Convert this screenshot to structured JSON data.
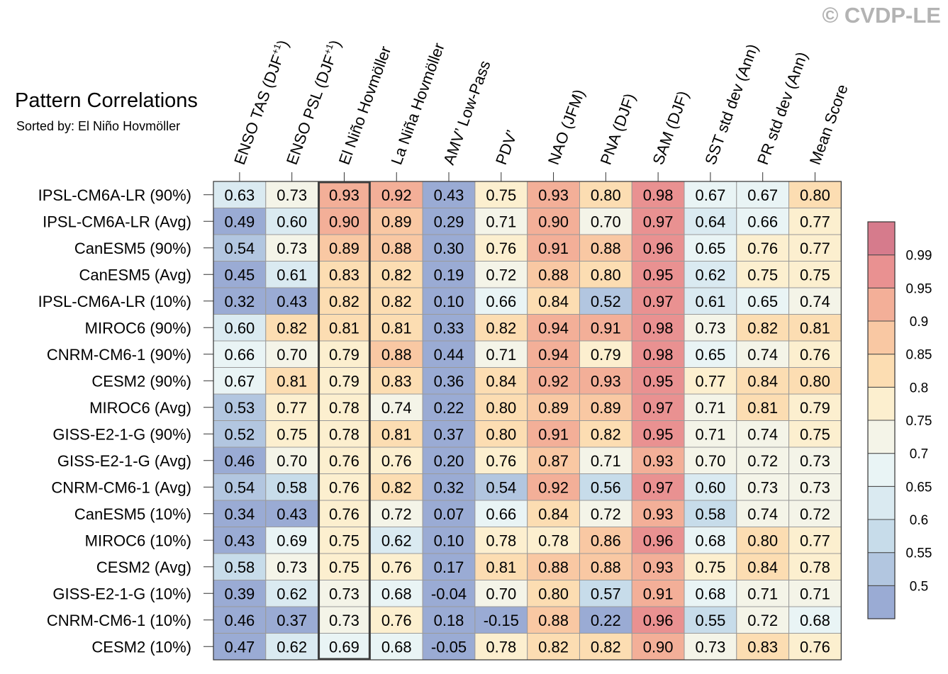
{
  "header": {
    "title": "Pattern Correlations",
    "subtitle": "Sorted by: El Niño Hovmöller",
    "copyright": "© CVDP-LE"
  },
  "chart_data": {
    "type": "heatmap",
    "columns": [
      "ENSO TAS (DJF+1)",
      "ENSO PSL (DJF+1)",
      "El Niño Hovmöller",
      "La Niña Hovmöller",
      "AMV’ Low-Pass",
      "PDV’",
      "NAO (JFM)",
      "PNA (DJF)",
      "SAM (DJF)",
      "SST std dev (Ann)",
      "PR std dev (Ann)",
      "Mean Score"
    ],
    "column_superscripts": [
      "+1",
      "+1",
      "",
      "",
      "",
      "",
      "",
      "",
      "",
      "",
      "",
      ""
    ],
    "column_bases": [
      "ENSO TAS (DJF",
      "ENSO PSL (DJF",
      "El Niño Hovmöller",
      "La Niña Hovmöller",
      "AMV’ Low-Pass",
      "PDV’",
      "NAO (JFM)",
      "PNA (DJF)",
      "SAM (DJF)",
      "SST std dev (Ann)",
      "PR std dev (Ann)",
      "Mean Score"
    ],
    "column_suffixes": [
      ")",
      ")",
      "",
      "",
      "",
      "",
      "",
      "",
      "",
      "",
      "",
      ""
    ],
    "rows": [
      "IPSL-CM6A-LR (90%)",
      "IPSL-CM6A-LR (Avg)",
      "CanESM5 (90%)",
      "CanESM5 (Avg)",
      "IPSL-CM6A-LR (10%)",
      "MIROC6 (90%)",
      "CNRM-CM6-1 (90%)",
      "CESM2 (90%)",
      "MIROC6 (Avg)",
      "GISS-E2-1-G (90%)",
      "GISS-E2-1-G (Avg)",
      "CNRM-CM6-1 (Avg)",
      "CanESM5 (10%)",
      "MIROC6 (10%)",
      "CESM2 (Avg)",
      "GISS-E2-1-G (10%)",
      "CNRM-CM6-1 (10%)",
      "CESM2 (10%)"
    ],
    "values": [
      [
        "0.63",
        "0.73",
        "0.93",
        "0.92",
        "0.43",
        "0.75",
        "0.93",
        "0.80",
        "0.98",
        "0.67",
        "0.67",
        "0.80"
      ],
      [
        "0.49",
        "0.60",
        "0.90",
        "0.89",
        "0.29",
        "0.71",
        "0.90",
        "0.70",
        "0.97",
        "0.64",
        "0.66",
        "0.77"
      ],
      [
        "0.54",
        "0.73",
        "0.89",
        "0.88",
        "0.30",
        "0.76",
        "0.91",
        "0.88",
        "0.96",
        "0.65",
        "0.76",
        "0.77"
      ],
      [
        "0.45",
        "0.61",
        "0.83",
        "0.82",
        "0.19",
        "0.72",
        "0.88",
        "0.80",
        "0.95",
        "0.62",
        "0.75",
        "0.75"
      ],
      [
        "0.32",
        "0.43",
        "0.82",
        "0.82",
        "0.10",
        "0.66",
        "0.84",
        "0.52",
        "0.97",
        "0.61",
        "0.65",
        "0.74"
      ],
      [
        "0.60",
        "0.82",
        "0.81",
        "0.81",
        "0.33",
        "0.82",
        "0.94",
        "0.91",
        "0.98",
        "0.73",
        "0.82",
        "0.81"
      ],
      [
        "0.66",
        "0.70",
        "0.79",
        "0.88",
        "0.44",
        "0.71",
        "0.94",
        "0.79",
        "0.98",
        "0.65",
        "0.74",
        "0.76"
      ],
      [
        "0.67",
        "0.81",
        "0.79",
        "0.83",
        "0.36",
        "0.84",
        "0.92",
        "0.93",
        "0.95",
        "0.77",
        "0.84",
        "0.80"
      ],
      [
        "0.53",
        "0.77",
        "0.78",
        "0.74",
        "0.22",
        "0.80",
        "0.89",
        "0.89",
        "0.97",
        "0.71",
        "0.81",
        "0.79"
      ],
      [
        "0.52",
        "0.75",
        "0.78",
        "0.81",
        "0.37",
        "0.80",
        "0.91",
        "0.82",
        "0.95",
        "0.71",
        "0.74",
        "0.75"
      ],
      [
        "0.46",
        "0.70",
        "0.76",
        "0.76",
        "0.20",
        "0.76",
        "0.87",
        "0.71",
        "0.93",
        "0.70",
        "0.72",
        "0.73"
      ],
      [
        "0.54",
        "0.58",
        "0.76",
        "0.82",
        "0.32",
        "0.54",
        "0.92",
        "0.56",
        "0.97",
        "0.60",
        "0.73",
        "0.73"
      ],
      [
        "0.34",
        "0.43",
        "0.76",
        "0.72",
        "0.07",
        "0.66",
        "0.84",
        "0.72",
        "0.93",
        "0.58",
        "0.74",
        "0.72"
      ],
      [
        "0.43",
        "0.69",
        "0.75",
        "0.62",
        "0.10",
        "0.78",
        "0.78",
        "0.86",
        "0.96",
        "0.68",
        "0.80",
        "0.77"
      ],
      [
        "0.58",
        "0.73",
        "0.75",
        "0.76",
        "0.17",
        "0.81",
        "0.88",
        "0.88",
        "0.93",
        "0.75",
        "0.84",
        "0.78"
      ],
      [
        "0.39",
        "0.62",
        "0.73",
        "0.68",
        "-0.04",
        "0.70",
        "0.80",
        "0.57",
        "0.91",
        "0.68",
        "0.71",
        "0.71"
      ],
      [
        "0.46",
        "0.37",
        "0.73",
        "0.76",
        "0.18",
        "-0.15",
        "0.88",
        "0.22",
        "0.96",
        "0.55",
        "0.72",
        "0.68"
      ],
      [
        "0.47",
        "0.62",
        "0.69",
        "0.68",
        "-0.05",
        "0.78",
        "0.82",
        "0.82",
        "0.90",
        "0.73",
        "0.83",
        "0.76"
      ]
    ],
    "highlight_column": "El Niño Hovmöller",
    "colorbar": {
      "levels": [
        0.5,
        0.55,
        0.6,
        0.65,
        0.7,
        0.75,
        0.8,
        0.85,
        0.9,
        0.95,
        0.99
      ],
      "labels": [
        "0.5",
        "0.55",
        "0.6",
        "0.65",
        "0.7",
        "0.75",
        "0.8",
        "0.85",
        "0.9",
        "0.95",
        "0.99"
      ],
      "colors": [
        "#9aabd4",
        "#b2c6e0",
        "#c7dcea",
        "#daeaf1",
        "#e9f4f5",
        "#f4f4e8",
        "#fcefcf",
        "#fcddb2",
        "#f9c8a3",
        "#f3af98",
        "#e99191",
        "#d67b8c"
      ]
    }
  }
}
